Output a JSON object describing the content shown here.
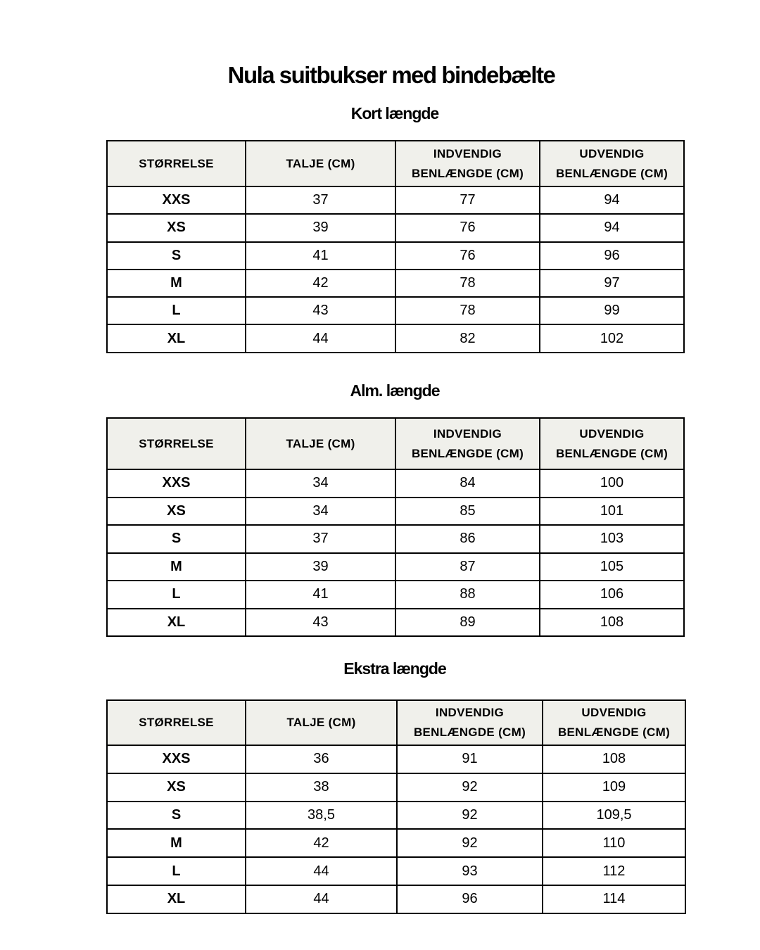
{
  "title": "Nula suitbukser med bindebælte",
  "colors": {
    "header_bg": "#f0f0eb",
    "border": "#000000"
  },
  "tables": [
    {
      "subtitle": "Kort længde",
      "headers": [
        "STØRRELSE",
        "TALJE (CM)",
        "INDVENDIG BENLÆNGDE (CM)",
        "UDVENDIG BENLÆNGDE (CM)"
      ],
      "rows": [
        [
          "XXS",
          "37",
          "77",
          "94"
        ],
        [
          "XS",
          "39",
          "76",
          "94"
        ],
        [
          "S",
          "41",
          "76",
          "96"
        ],
        [
          "M",
          "42",
          "78",
          "97"
        ],
        [
          "L",
          "43",
          "78",
          "99"
        ],
        [
          "XL",
          "44",
          "82",
          "102"
        ]
      ]
    },
    {
      "subtitle": "Alm. længde",
      "headers": [
        "STØRRELSE",
        "TALJE (CM)",
        "INDVENDIG BENLÆNGDE (CM)",
        "UDVENDIG BENLÆNGDE (CM)"
      ],
      "rows": [
        [
          "XXS",
          "34",
          "84",
          "100"
        ],
        [
          "XS",
          "34",
          "85",
          "101"
        ],
        [
          "S",
          "37",
          "86",
          "103"
        ],
        [
          "M",
          "39",
          "87",
          "105"
        ],
        [
          "L",
          "41",
          "88",
          "106"
        ],
        [
          "XL",
          "43",
          "89",
          "108"
        ]
      ]
    },
    {
      "subtitle": "Ekstra længde",
      "headers": [
        "STØRRELSE",
        "TALJE (CM)",
        "INDVENDIG BENLÆNGDE (CM)",
        "UDVENDIG BENLÆNGDE (CM)"
      ],
      "rows": [
        [
          "XXS",
          "36",
          "91",
          "108"
        ],
        [
          "XS",
          "38",
          "92",
          "109"
        ],
        [
          "S",
          "38,5",
          "92",
          "109,5"
        ],
        [
          "M",
          "42",
          "92",
          "110"
        ],
        [
          "L",
          "44",
          "93",
          "112"
        ],
        [
          "XL",
          "44",
          "96",
          "114"
        ]
      ]
    }
  ]
}
